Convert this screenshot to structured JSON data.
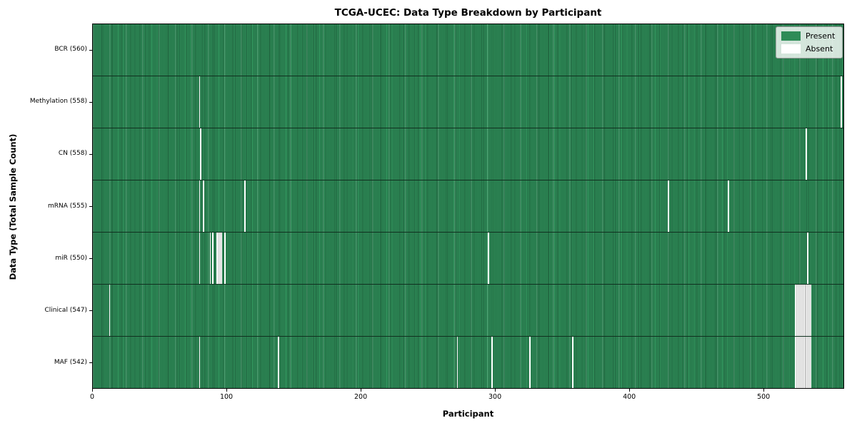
{
  "chart_data": {
    "type": "heatmap",
    "title": "TCGA-UCEC: Data Type Breakdown by Participant",
    "xlabel": "Participant",
    "ylabel": "Data Type (Total Sample Count)",
    "xlim": [
      0,
      560
    ],
    "x_ticks": [
      0,
      100,
      200,
      300,
      400,
      500
    ],
    "n_participants": 560,
    "present_color": "#2e8b57",
    "absent_color": "#ffffff",
    "grid_edge_color": "#1c5a39",
    "row_separator_color": "#10301f",
    "grid": false,
    "legend": {
      "position": "upper right",
      "entries": [
        {
          "label": "Present",
          "color": "#2e8b57"
        },
        {
          "label": "Absent",
          "color": "#ffffff"
        }
      ]
    },
    "rows": [
      {
        "name": "BCR",
        "label": "BCR (560)",
        "total_samples": 560,
        "absent_participants": []
      },
      {
        "name": "Methylation",
        "label": "Methylation (558)",
        "total_samples": 558,
        "absent_participants": [
          79,
          557
        ]
      },
      {
        "name": "CN",
        "label": "CN (558)",
        "total_samples": 558,
        "absent_participants": [
          80,
          531
        ]
      },
      {
        "name": "mRNA",
        "label": "mRNA (555)",
        "total_samples": 555,
        "absent_participants": [
          79,
          82,
          113,
          428,
          473
        ]
      },
      {
        "name": "miR",
        "label": "miR (550)",
        "total_samples": 550,
        "absent_participants": [
          79,
          87,
          89,
          92,
          93,
          94,
          95,
          98,
          294,
          532
        ]
      },
      {
        "name": "Clinical",
        "label": "Clinical (547)",
        "total_samples": 547,
        "absent_participants": [
          12,
          523,
          524,
          525,
          526,
          527,
          528,
          529,
          530,
          531,
          532,
          533,
          534
        ]
      },
      {
        "name": "MAF",
        "label": "MAF (542)",
        "total_samples": 542,
        "absent_participants": [
          79,
          138,
          271,
          297,
          325,
          357,
          523,
          524,
          525,
          526,
          527,
          528,
          529,
          530,
          531,
          532,
          533,
          534
        ]
      }
    ]
  }
}
